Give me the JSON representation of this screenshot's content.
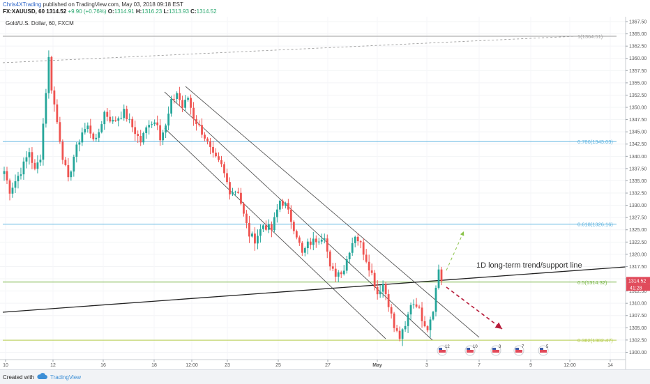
{
  "header": {
    "author": "Chris4XTrading",
    "published_text": "published on TradingView.com, May 03, 2018 09:18 EST",
    "symbol": "FX:XAUUSD, 60",
    "last": "1314.52",
    "change": "+9.90 (+0.76%)",
    "open_label": "O:",
    "open": "1314.91",
    "high_label": "H:",
    "high": "1316.23",
    "low_label": "L:",
    "low": "1313.93",
    "close_label": "C:",
    "close": "1314.52"
  },
  "legend": {
    "title": "Gold/U.S. Dollar, 60, FXCM"
  },
  "footer": {
    "created_with": "Created with",
    "brand": "TradingView"
  },
  "colors": {
    "up": "#26a69a",
    "down": "#ef5350",
    "fib": "#5fb4e0",
    "fib_382": "#b5cc4a",
    "price_tag": "#e04a5a"
  },
  "chart_data": {
    "type": "candlestick",
    "instrument": "Gold/U.S. Dollar, 60, FXCM",
    "ylim": [
      1298.5,
      1368.5
    ],
    "y_ticks": [
      "1367.50",
      "1365.00",
      "1362.50",
      "1360.00",
      "1357.50",
      "1355.00",
      "1352.50",
      "1350.00",
      "1347.50",
      "1345.00",
      "1342.50",
      "1340.00",
      "1337.50",
      "1335.00",
      "1332.50",
      "1330.00",
      "1327.50",
      "1325.00",
      "1322.50",
      "1320.00",
      "1317.50",
      "1315.00",
      "1312.50",
      "1310.00",
      "1307.50",
      "1305.00",
      "1302.50",
      "1300.00"
    ],
    "x_ticks": [
      "10",
      "12",
      "16",
      "18",
      "12:00",
      "23",
      "25",
      "27",
      "May",
      "3",
      "7",
      "9",
      "12:00",
      "14"
    ],
    "last_price": "1314.52",
    "countdown": "41:28",
    "fib_levels": [
      {
        "label": "1(1364.51)",
        "value": 1364.51
      },
      {
        "label": "0.786(1343.03)",
        "value": 1343.03
      },
      {
        "label": "0.618(1326.16)",
        "value": 1326.16
      },
      {
        "label": "0.5(1314.32)",
        "value": 1314.32
      },
      {
        "label": "0.382(1302.47)",
        "value": 1302.47
      }
    ],
    "annotation": "1D long-term trend/support line",
    "events": [
      "12",
      "10",
      "3",
      "7",
      "5"
    ],
    "anchors": [
      {
        "t": 0,
        "p": 1337
      },
      {
        "t": 2,
        "p": 1333
      },
      {
        "t": 6,
        "p": 1337
      },
      {
        "t": 9,
        "p": 1341
      },
      {
        "t": 11,
        "p": 1337
      },
      {
        "t": 13,
        "p": 1340
      },
      {
        "t": 16,
        "p": 1360
      },
      {
        "t": 17,
        "p": 1354
      },
      {
        "t": 19,
        "p": 1347
      },
      {
        "t": 21,
        "p": 1340
      },
      {
        "t": 23,
        "p": 1335
      },
      {
        "t": 25,
        "p": 1340
      },
      {
        "t": 28,
        "p": 1345
      },
      {
        "t": 30,
        "p": 1346
      },
      {
        "t": 33,
        "p": 1343
      },
      {
        "t": 36,
        "p": 1349
      },
      {
        "t": 39,
        "p": 1347
      },
      {
        "t": 43,
        "p": 1349
      },
      {
        "t": 46,
        "p": 1346
      },
      {
        "t": 49,
        "p": 1343
      },
      {
        "t": 52,
        "p": 1347
      },
      {
        "t": 55,
        "p": 1347
      },
      {
        "t": 56,
        "p": 1344
      },
      {
        "t": 58,
        "p": 1346
      },
      {
        "t": 60,
        "p": 1351
      },
      {
        "t": 62,
        "p": 1353
      },
      {
        "t": 64,
        "p": 1350
      },
      {
        "t": 66,
        "p": 1352
      },
      {
        "t": 68,
        "p": 1348
      },
      {
        "t": 70,
        "p": 1346
      },
      {
        "t": 72,
        "p": 1344
      },
      {
        "t": 75,
        "p": 1340
      },
      {
        "t": 78,
        "p": 1338
      },
      {
        "t": 81,
        "p": 1333
      },
      {
        "t": 84,
        "p": 1333
      },
      {
        "t": 86,
        "p": 1328
      },
      {
        "t": 88,
        "p": 1324
      },
      {
        "t": 90,
        "p": 1323
      },
      {
        "t": 93,
        "p": 1326
      },
      {
        "t": 96,
        "p": 1325
      },
      {
        "t": 99,
        "p": 1331
      },
      {
        "t": 101,
        "p": 1330
      },
      {
        "t": 103,
        "p": 1327
      },
      {
        "t": 105,
        "p": 1324
      },
      {
        "t": 107,
        "p": 1320
      },
      {
        "t": 109,
        "p": 1322
      },
      {
        "t": 112,
        "p": 1323
      },
      {
        "t": 115,
        "p": 1324
      },
      {
        "t": 117,
        "p": 1317
      },
      {
        "t": 119,
        "p": 1316
      },
      {
        "t": 122,
        "p": 1317
      },
      {
        "t": 124,
        "p": 1321
      },
      {
        "t": 126,
        "p": 1324
      },
      {
        "t": 128,
        "p": 1322
      },
      {
        "t": 130,
        "p": 1319
      },
      {
        "t": 132,
        "p": 1316
      },
      {
        "t": 134,
        "p": 1312
      },
      {
        "t": 136,
        "p": 1314
      },
      {
        "t": 138,
        "p": 1310
      },
      {
        "t": 140,
        "p": 1305
      },
      {
        "t": 142,
        "p": 1303
      },
      {
        "t": 144,
        "p": 1305
      },
      {
        "t": 146,
        "p": 1310
      },
      {
        "t": 148,
        "p": 1310
      },
      {
        "t": 150,
        "p": 1307
      },
      {
        "t": 152,
        "p": 1305
      },
      {
        "t": 154,
        "p": 1309
      },
      {
        "t": 155,
        "p": 1313
      },
      {
        "t": 156,
        "p": 1317
      },
      {
        "t": 157,
        "p": 1314.5
      }
    ]
  }
}
